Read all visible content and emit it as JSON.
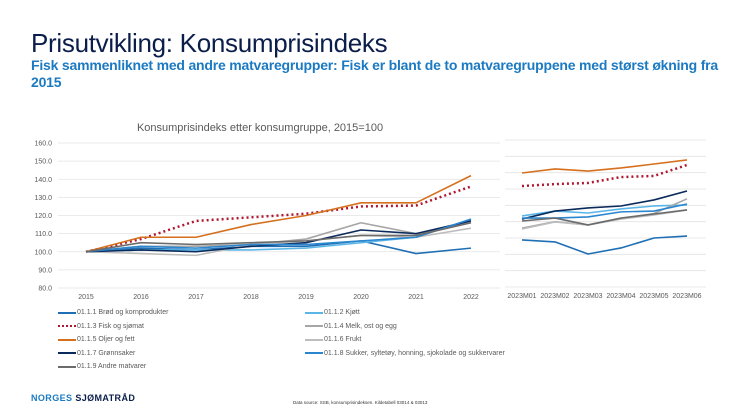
{
  "header": {
    "title": "Prisutvikling: Konsumprisindeks",
    "subtitle": "Fisk sammenliknet med andre matvaregrupper: Fisk er blant de to matvaregruppene med størst økning fra 2015"
  },
  "footer": {
    "logo_part1": "NORGES",
    "logo_part2": "SJØMATRÅD",
    "source": "Data source: SSB, konsumprisindeksen. Kildetabell 03014 & 03013"
  },
  "chart_data": [
    {
      "type": "line",
      "title": "Konsumprisindeks etter konsumgruppe, 2015=100",
      "xlabel": "",
      "ylabel": "",
      "ylim": [
        80,
        160
      ],
      "yticks": [
        "80.0",
        "90.0",
        "100.0",
        "110.0",
        "120.0",
        "130.0",
        "140.0",
        "150.0",
        "160.0"
      ],
      "grid": true,
      "legend": "bottom",
      "categories": [
        "2015",
        "2016",
        "2017",
        "2018",
        "2019",
        "2020",
        "2021",
        "2022"
      ],
      "series": [
        {
          "name": "01.1.1 Brød og kornprodukter",
          "color": "#1f6fb5",
          "style": "solid",
          "values": [
            100,
            102,
            101,
            103,
            103,
            106,
            99,
            102
          ]
        },
        {
          "name": "01.1.2 Kjøtt",
          "color": "#5bb6e8",
          "style": "solid",
          "values": [
            100,
            101,
            101,
            101,
            102,
            105,
            108,
            118
          ]
        },
        {
          "name": "01.1.3 Fisk og sjømat",
          "color": "#b0172f",
          "style": "dotted",
          "values": [
            100,
            107,
            117,
            119,
            121,
            125,
            125.5,
            136
          ]
        },
        {
          "name": "01.1.4 Melk, ost og egg",
          "color": "#a6a6a6",
          "style": "solid",
          "values": [
            100,
            103,
            103,
            104,
            107,
            116,
            110,
            116
          ]
        },
        {
          "name": "01.1.5 Oljer og fett",
          "color": "#d5701f",
          "style": "solid",
          "values": [
            100,
            108,
            108,
            115,
            120,
            127,
            127,
            142
          ]
        },
        {
          "name": "01.1.6 Frukt",
          "color": "#bdbdbd",
          "style": "solid",
          "values": [
            100,
            99,
            98,
            104,
            106,
            109,
            108,
            113
          ]
        },
        {
          "name": "01.1.7 Grønnsaker",
          "color": "#0b2a5c",
          "style": "solid",
          "values": [
            100,
            101,
            100,
            103,
            105,
            112,
            110,
            117
          ]
        },
        {
          "name": "01.1.8 Sukker, syltetøy, honning, sjokolade og sukkervarer",
          "color": "#2a86cf",
          "style": "solid",
          "values": [
            100,
            103,
            102,
            104,
            104,
            106,
            108,
            118
          ]
        },
        {
          "name": "01.1.9 Andre matvarer",
          "color": "#6b6b6b",
          "style": "solid",
          "values": [
            100,
            105,
            104,
            105,
            106,
            109,
            109,
            116
          ]
        }
      ]
    },
    {
      "type": "line",
      "title": "",
      "ylim": [
        80,
        170
      ],
      "grid": true,
      "categories": [
        "2023M01",
        "2023M02",
        "2023M03",
        "2023M04",
        "2023M05",
        "2023M06"
      ],
      "series": [
        {
          "name": "01.1.1 Brød og kornprodukter",
          "color": "#1f6fb5",
          "style": "solid",
          "values": [
            108.8,
            107.6,
            100.2,
            103.9,
            110,
            111.2
          ]
        },
        {
          "name": "01.1.2 Kjøtt",
          "color": "#5bb6e8",
          "style": "solid",
          "values": [
            123.5,
            126.5,
            125.3,
            127.8,
            129.6,
            130.2
          ]
        },
        {
          "name": "01.1.3 Fisk og sjømat",
          "color": "#b0172f",
          "style": "dotted",
          "values": [
            141.8,
            143,
            143.7,
            147.3,
            148,
            154.7
          ]
        },
        {
          "name": "01.1.4 Melk, ost og egg",
          "color": "#a6a6a6",
          "style": "solid",
          "values": [
            116,
            120,
            118,
            122,
            125,
            134
          ]
        },
        {
          "name": "01.1.5 Oljer og fett",
          "color": "#d5701f",
          "style": "solid",
          "values": [
            149.8,
            152.3,
            151,
            152.9,
            155.3,
            157.8
          ]
        },
        {
          "name": "01.1.6 Frukt",
          "color": "#bdbdbd",
          "style": "solid",
          "values": [
            115.5,
            119.8,
            118,
            121.6,
            124.1,
            127.2
          ]
        },
        {
          "name": "01.1.7 Grønnsaker",
          "color": "#0b2a5c",
          "style": "solid",
          "values": [
            121.6,
            126.5,
            128.4,
            129.6,
            133.3,
            138.8
          ]
        },
        {
          "name": "01.1.8 Sukker, syltetøy, honning, sjokolade og sukkervarer",
          "color": "#2a86cf",
          "style": "solid",
          "values": [
            122.2,
            122.2,
            122.9,
            126,
            126.5,
            130.8
          ]
        },
        {
          "name": "01.1.9 Andre matvarer",
          "color": "#6b6b6b",
          "style": "solid",
          "values": [
            120.4,
            122.2,
            118,
            122.2,
            124.7,
            127.2
          ]
        }
      ]
    }
  ]
}
